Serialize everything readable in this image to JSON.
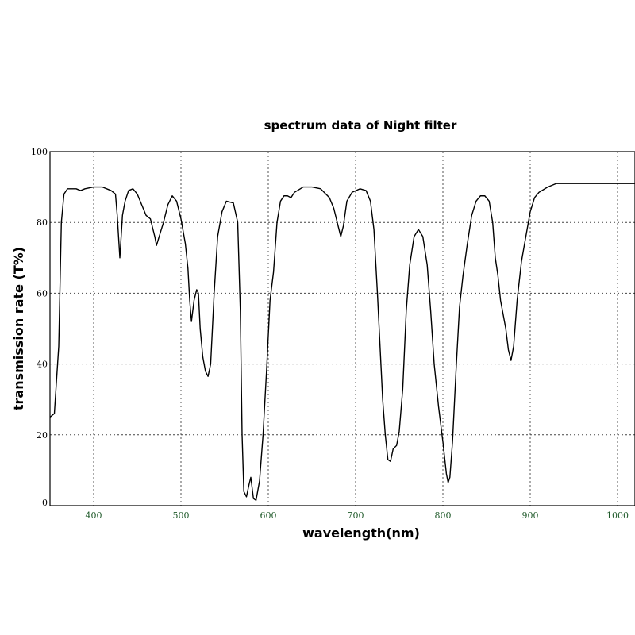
{
  "chart_data": {
    "type": "line",
    "title": "spectrum data of Night filter",
    "xlabel": "wavelength(nm)",
    "ylabel": "transmission rate (T%)",
    "xlim": [
      350,
      1020
    ],
    "ylim": [
      0,
      100
    ],
    "x_ticks": [
      400,
      500,
      600,
      700,
      800,
      900,
      1000
    ],
    "y_ticks": [
      0,
      20,
      40,
      60,
      80,
      100
    ],
    "grid": true,
    "series": [
      {
        "color": "#000000",
        "points": [
          [
            350,
            25
          ],
          [
            355,
            26
          ],
          [
            360,
            45
          ],
          [
            363,
            80
          ],
          [
            366,
            88
          ],
          [
            370,
            89.5
          ],
          [
            380,
            89.5
          ],
          [
            385,
            89
          ],
          [
            390,
            89.5
          ],
          [
            400,
            90
          ],
          [
            410,
            90
          ],
          [
            420,
            89
          ],
          [
            425,
            88
          ],
          [
            427,
            82
          ],
          [
            430,
            70
          ],
          [
            433,
            82
          ],
          [
            436,
            86
          ],
          [
            440,
            89
          ],
          [
            445,
            89.5
          ],
          [
            450,
            88
          ],
          [
            455,
            85
          ],
          [
            460,
            82
          ],
          [
            465,
            81
          ],
          [
            470,
            76
          ],
          [
            472,
            73.5
          ],
          [
            475,
            76
          ],
          [
            480,
            80
          ],
          [
            485,
            85
          ],
          [
            490,
            87.5
          ],
          [
            495,
            86
          ],
          [
            500,
            81
          ],
          [
            505,
            74
          ],
          [
            508,
            67
          ],
          [
            510,
            58
          ],
          [
            512,
            52
          ],
          [
            515,
            58
          ],
          [
            518,
            61
          ],
          [
            520,
            60
          ],
          [
            522,
            50
          ],
          [
            525,
            42
          ],
          [
            528,
            38
          ],
          [
            531,
            36.5
          ],
          [
            534,
            40
          ],
          [
            538,
            60
          ],
          [
            542,
            76
          ],
          [
            547,
            83
          ],
          [
            552,
            86
          ],
          [
            560,
            85.5
          ],
          [
            565,
            80
          ],
          [
            568,
            55
          ],
          [
            570,
            20
          ],
          [
            572,
            4
          ],
          [
            575,
            2.5
          ],
          [
            578,
            6
          ],
          [
            580,
            8
          ],
          [
            583,
            2
          ],
          [
            586,
            1.5
          ],
          [
            590,
            7
          ],
          [
            594,
            20
          ],
          [
            598,
            38
          ],
          [
            602,
            58
          ],
          [
            606,
            66
          ],
          [
            610,
            80
          ],
          [
            614,
            86
          ],
          [
            618,
            87.5
          ],
          [
            622,
            87.5
          ],
          [
            626,
            87
          ],
          [
            630,
            88.5
          ],
          [
            640,
            90
          ],
          [
            650,
            90
          ],
          [
            660,
            89.5
          ],
          [
            670,
            87
          ],
          [
            675,
            84
          ],
          [
            680,
            79
          ],
          [
            683,
            76
          ],
          [
            686,
            79
          ],
          [
            690,
            86
          ],
          [
            696,
            88.5
          ],
          [
            705,
            89.5
          ],
          [
            712,
            89
          ],
          [
            717,
            86
          ],
          [
            721,
            78
          ],
          [
            725,
            60
          ],
          [
            728,
            45
          ],
          [
            731,
            30
          ],
          [
            734,
            20
          ],
          [
            737,
            13
          ],
          [
            740,
            12.5
          ],
          [
            743,
            16
          ],
          [
            747,
            17
          ],
          [
            750,
            21
          ],
          [
            754,
            33
          ],
          [
            758,
            55
          ],
          [
            762,
            68
          ],
          [
            767,
            76
          ],
          [
            772,
            78
          ],
          [
            777,
            76
          ],
          [
            782,
            68
          ],
          [
            786,
            55
          ],
          [
            790,
            40
          ],
          [
            795,
            28
          ],
          [
            800,
            18
          ],
          [
            804,
            9
          ],
          [
            806,
            6.5
          ],
          [
            808,
            8
          ],
          [
            811,
            18
          ],
          [
            815,
            38
          ],
          [
            819,
            56
          ],
          [
            823,
            65
          ],
          [
            828,
            74
          ],
          [
            833,
            82
          ],
          [
            838,
            86
          ],
          [
            843,
            87.5
          ],
          [
            848,
            87.5
          ],
          [
            853,
            86
          ],
          [
            857,
            80
          ],
          [
            860,
            70
          ],
          [
            863,
            65
          ],
          [
            866,
            58
          ],
          [
            869,
            54
          ],
          [
            872,
            50
          ],
          [
            875,
            44
          ],
          [
            878,
            41
          ],
          [
            881,
            45
          ],
          [
            885,
            58
          ],
          [
            890,
            69
          ],
          [
            895,
            76
          ],
          [
            900,
            83
          ],
          [
            905,
            87
          ],
          [
            910,
            88.5
          ],
          [
            920,
            90
          ],
          [
            930,
            91
          ],
          [
            940,
            91
          ],
          [
            960,
            91
          ],
          [
            990,
            91
          ],
          [
            1020,
            91
          ]
        ]
      }
    ]
  }
}
